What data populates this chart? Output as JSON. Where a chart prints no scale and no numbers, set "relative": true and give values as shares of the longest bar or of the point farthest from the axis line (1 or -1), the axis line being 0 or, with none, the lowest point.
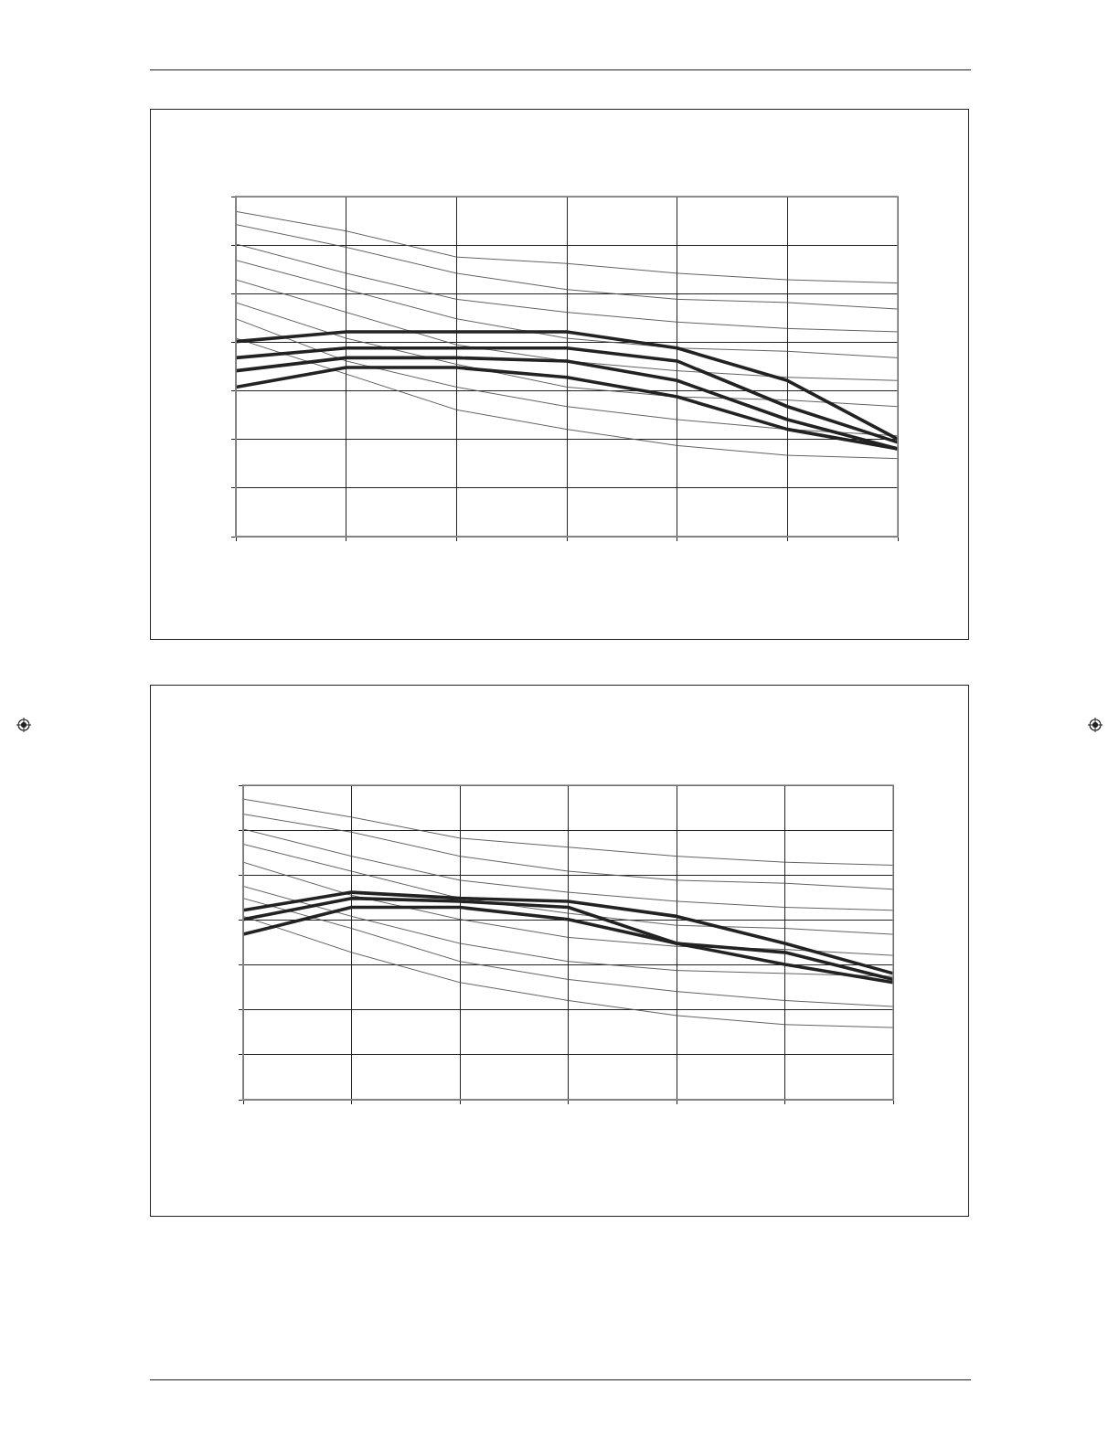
{
  "chart_data": [
    {
      "type": "line",
      "relative": true,
      "categories": [
        null,
        null,
        null,
        null,
        null,
        null,
        null
      ],
      "grid": true,
      "legend": false,
      "tick_labels": false,
      "marker": "none",
      "line_style": "solid",
      "series": [
        {
          "color": "#505050",
          "values": [
            1.0,
            0.94,
            0.86,
            0.84,
            0.81,
            0.79,
            0.78
          ]
        },
        {
          "color": "#505050",
          "values": [
            0.96,
            0.89,
            0.81,
            0.76,
            0.73,
            0.72,
            0.7
          ]
        },
        {
          "color": "#505050",
          "values": [
            0.9,
            0.81,
            0.73,
            0.69,
            0.66,
            0.64,
            0.63
          ]
        },
        {
          "color": "#505050",
          "values": [
            0.85,
            0.76,
            0.67,
            0.61,
            0.58,
            0.57,
            0.55
          ]
        },
        {
          "color": "#505050",
          "values": [
            0.79,
            0.69,
            0.59,
            0.54,
            0.51,
            0.49,
            0.48
          ]
        },
        {
          "color": "#505050",
          "values": [
            0.72,
            0.61,
            0.53,
            0.46,
            0.43,
            0.42,
            0.4
          ]
        },
        {
          "color": "#505050",
          "values": [
            0.67,
            0.54,
            0.46,
            0.4,
            0.36,
            0.33,
            0.31
          ]
        },
        {
          "color": "#505050",
          "values": [
            0.61,
            0.5,
            0.39,
            0.33,
            0.28,
            0.25,
            0.24
          ]
        },
        {
          "color": "#222222",
          "values": [
            0.6,
            0.63,
            0.63,
            0.63,
            0.58,
            0.48,
            0.3
          ]
        },
        {
          "color": "#222222",
          "values": [
            0.55,
            0.58,
            0.58,
            0.58,
            0.54,
            0.4,
            0.29
          ]
        },
        {
          "color": "#222222",
          "values": [
            0.51,
            0.55,
            0.55,
            0.54,
            0.48,
            0.36,
            0.27
          ]
        },
        {
          "color": "#222222",
          "values": [
            0.46,
            0.52,
            0.52,
            0.49,
            0.43,
            0.33,
            0.27
          ]
        }
      ]
    },
    {
      "type": "line",
      "relative": true,
      "categories": [
        null,
        null,
        null,
        null,
        null,
        null,
        null
      ],
      "grid": true,
      "legend": false,
      "tick_labels": false,
      "marker": "none",
      "line_style": "solid",
      "series": [
        {
          "color": "#505050",
          "values": [
            1.0,
            0.94,
            0.87,
            0.84,
            0.81,
            0.79,
            0.78
          ]
        },
        {
          "color": "#505050",
          "values": [
            0.95,
            0.89,
            0.81,
            0.76,
            0.73,
            0.72,
            0.7
          ]
        },
        {
          "color": "#505050",
          "values": [
            0.9,
            0.81,
            0.73,
            0.69,
            0.66,
            0.64,
            0.63
          ]
        },
        {
          "color": "#505050",
          "values": [
            0.85,
            0.76,
            0.67,
            0.62,
            0.58,
            0.57,
            0.55
          ]
        },
        {
          "color": "#505050",
          "values": [
            0.79,
            0.68,
            0.6,
            0.54,
            0.51,
            0.5,
            0.48
          ]
        },
        {
          "color": "#505050",
          "values": [
            0.71,
            0.61,
            0.52,
            0.46,
            0.43,
            0.42,
            0.41
          ]
        },
        {
          "color": "#505050",
          "values": [
            0.67,
            0.57,
            0.46,
            0.4,
            0.36,
            0.33,
            0.31
          ]
        },
        {
          "color": "#505050",
          "values": [
            0.61,
            0.49,
            0.39,
            0.33,
            0.28,
            0.25,
            0.24
          ]
        },
        {
          "color": "#222222",
          "values": [
            0.63,
            0.69,
            0.67,
            0.66,
            0.61,
            0.52,
            0.42
          ]
        },
        {
          "color": "#222222",
          "values": [
            0.6,
            0.67,
            0.66,
            0.64,
            0.52,
            0.49,
            0.4
          ]
        },
        {
          "color": "#222222",
          "values": [
            0.55,
            0.64,
            0.64,
            0.6,
            0.52,
            0.45,
            0.39
          ]
        }
      ]
    }
  ]
}
